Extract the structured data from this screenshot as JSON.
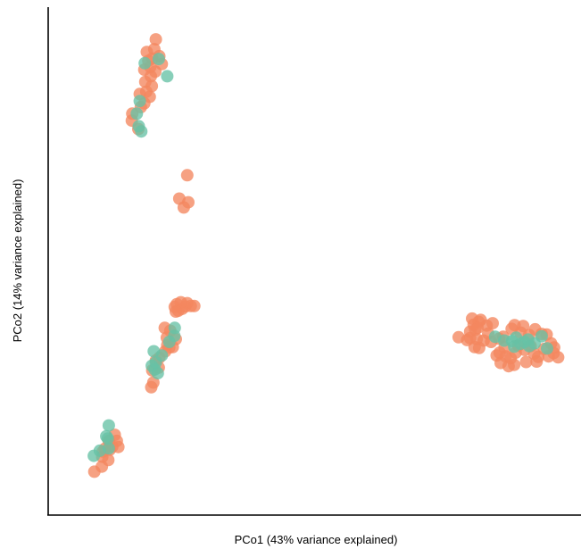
{
  "chart_data": {
    "type": "scatter",
    "xlabel": "PCo1 (43% variance explained)",
    "ylabel": "PCo2 (14% variance explained)",
    "xlim": [
      0,
      100
    ],
    "ylim": [
      0,
      100
    ],
    "grid": false,
    "ticks": false,
    "colors": {
      "orange": "#F4875F",
      "green": "#66C2A5"
    },
    "series": [
      {
        "color": "#F4875F",
        "points": [
          [
            17.6,
            97.3
          ],
          [
            17.3,
            95.2
          ],
          [
            15.8,
            94.6
          ],
          [
            18.3,
            93.7
          ],
          [
            16.9,
            93.2
          ],
          [
            16.1,
            92.7
          ],
          [
            18.8,
            92.0
          ],
          [
            16.5,
            91.4
          ],
          [
            17.5,
            90.4
          ],
          [
            15.3,
            90.8
          ],
          [
            16.6,
            89.4
          ],
          [
            15.5,
            88.2
          ],
          [
            16.8,
            87.3
          ],
          [
            15.7,
            86.1
          ],
          [
            16.4,
            85.0
          ],
          [
            14.4,
            85.6
          ],
          [
            15.3,
            83.6
          ],
          [
            14.6,
            82.8
          ],
          [
            12.9,
            81.4
          ],
          [
            12.8,
            79.9
          ],
          [
            14.1,
            78.1
          ],
          [
            23.9,
            68.2
          ],
          [
            22.3,
            63.2
          ],
          [
            24.1,
            62.4
          ],
          [
            23.2,
            61.3
          ],
          [
            21.8,
            40.6
          ],
          [
            21.4,
            40.0
          ],
          [
            22.9,
            39.6
          ],
          [
            23.5,
            40.1
          ],
          [
            22.1,
            39.2
          ],
          [
            24.6,
            40.2
          ],
          [
            23.9,
            40.8
          ],
          [
            21.6,
            39.0
          ],
          [
            22.6,
            41.0
          ],
          [
            25.3,
            40.2
          ],
          [
            19.4,
            35.5
          ],
          [
            20.5,
            34.9
          ],
          [
            19.8,
            33.4
          ],
          [
            19.9,
            31.8
          ],
          [
            21.6,
            33.1
          ],
          [
            20.3,
            31.3
          ],
          [
            21.0,
            31.4
          ],
          [
            19.5,
            30.5
          ],
          [
            18.3,
            29.1
          ],
          [
            17.6,
            28.5
          ],
          [
            18.2,
            27.0
          ],
          [
            16.9,
            26.4
          ],
          [
            17.1,
            23.8
          ],
          [
            16.7,
            22.8
          ],
          [
            9.4,
            12.6
          ],
          [
            9.8,
            11.3
          ],
          [
            10.1,
            10.0
          ],
          [
            8.9,
            10.1
          ],
          [
            8.2,
            11.3
          ],
          [
            8.4,
            9.4
          ],
          [
            7.4,
            9.6
          ],
          [
            7.0,
            9.0
          ],
          [
            6.9,
            7.9
          ],
          [
            8.1,
            7.2
          ],
          [
            6.8,
            5.8
          ],
          [
            5.3,
            4.7
          ],
          [
            78.2,
            33.5
          ],
          [
            79.9,
            32.9
          ],
          [
            80.5,
            33.3
          ],
          [
            81.5,
            35.1
          ],
          [
            81.2,
            36.2
          ],
          [
            82.2,
            36.8
          ],
          [
            80.9,
            37.5
          ],
          [
            82.6,
            37.2
          ],
          [
            83.8,
            36.0
          ],
          [
            82.0,
            35.5
          ],
          [
            84.1,
            34.3
          ],
          [
            80.5,
            34.7
          ],
          [
            81.8,
            33.1
          ],
          [
            83.2,
            32.8
          ],
          [
            81.4,
            31.4
          ],
          [
            82.3,
            31.2
          ],
          [
            84.7,
            32.5
          ],
          [
            85.0,
            36.5
          ],
          [
            86.3,
            33.2
          ],
          [
            87.1,
            33.6
          ],
          [
            88.8,
            35.3
          ],
          [
            89.4,
            36.1
          ],
          [
            91.1,
            35.9
          ],
          [
            90.6,
            34.5
          ],
          [
            92.3,
            34.0
          ],
          [
            93.5,
            35.2
          ],
          [
            94.8,
            34.2
          ],
          [
            95.8,
            34.1
          ],
          [
            96.7,
            32.2
          ],
          [
            97.2,
            30.1
          ],
          [
            98.1,
            29.2
          ],
          [
            96.2,
            29.4
          ],
          [
            95.3,
            31.0
          ],
          [
            94.1,
            29.3
          ],
          [
            93.3,
            30.0
          ],
          [
            92.6,
            31.6
          ],
          [
            91.4,
            30.8
          ],
          [
            90.1,
            31.7
          ],
          [
            89.6,
            30.2
          ],
          [
            88.6,
            29.0
          ],
          [
            87.6,
            29.4
          ],
          [
            88.2,
            27.3
          ],
          [
            89.3,
            27.6
          ],
          [
            87.4,
            31.3
          ],
          [
            86.4,
            30.2
          ],
          [
            85.8,
            29.6
          ],
          [
            86.6,
            28.0
          ],
          [
            91.7,
            28.2
          ],
          [
            93.8,
            28.3
          ],
          [
            97.3,
            31.3
          ]
        ]
      },
      {
        "color": "#66C2A5",
        "points": [
          [
            18.2,
            93.1
          ],
          [
            19.9,
            89.4
          ],
          [
            15.4,
            92.2
          ],
          [
            14.4,
            84.1
          ],
          [
            13.8,
            81.4
          ],
          [
            14.2,
            78.7
          ],
          [
            14.7,
            77.6
          ],
          [
            21.4,
            35.5
          ],
          [
            21.3,
            33.8
          ],
          [
            20.3,
            32.5
          ],
          [
            18.8,
            29.6
          ],
          [
            17.2,
            30.5
          ],
          [
            16.8,
            27.4
          ],
          [
            17.4,
            26.6
          ],
          [
            18.0,
            25.8
          ],
          [
            17.6,
            28.1
          ],
          [
            8.2,
            14.6
          ],
          [
            7.7,
            12.3
          ],
          [
            8.0,
            11.8
          ],
          [
            6.4,
            9.2
          ],
          [
            5.2,
            8.1
          ],
          [
            8.2,
            9.7
          ],
          [
            85.5,
            33.6
          ],
          [
            88.9,
            32.7
          ],
          [
            89.7,
            33.4
          ],
          [
            89.3,
            31.5
          ],
          [
            90.6,
            32.1
          ],
          [
            91.4,
            32.5
          ],
          [
            92.3,
            31.6
          ],
          [
            93.4,
            32.2
          ],
          [
            94.8,
            33.7
          ],
          [
            95.9,
            31.1
          ],
          [
            87.3,
            32.8
          ],
          [
            92.1,
            33.0
          ]
        ]
      }
    ]
  }
}
